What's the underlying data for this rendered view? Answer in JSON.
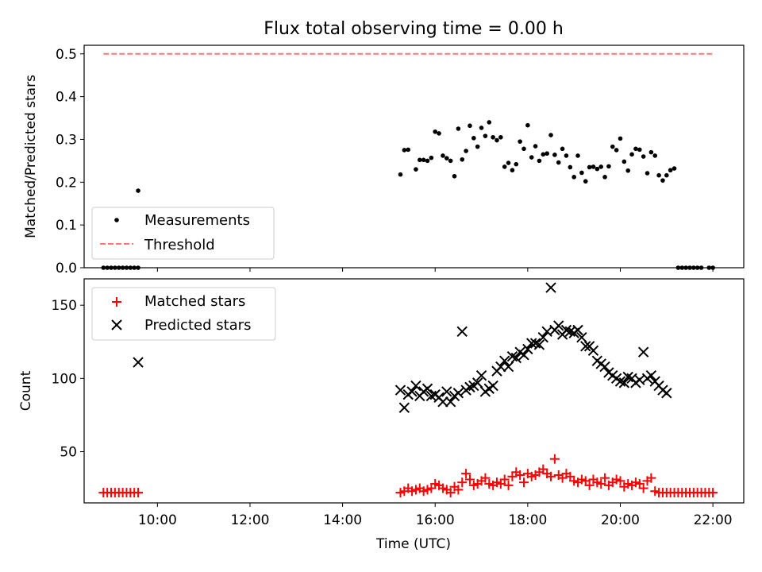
{
  "chart_data": [
    {
      "type": "scatter",
      "title": "Flux total observing time = 0.00 h",
      "xlabel": "",
      "ylabel": "Matched/Predicted stars",
      "xlim": [
        "08:25",
        "22:40"
      ],
      "ylim": [
        0,
        0.52
      ],
      "yticks": [
        0.0,
        0.1,
        0.2,
        0.3,
        0.4,
        0.5
      ],
      "ytick_labels": [
        "0.0",
        "0.1",
        "0.2",
        "0.3",
        "0.4",
        "0.5"
      ],
      "grid": false,
      "legend": "lower-left",
      "series": [
        {
          "name": "Measurements",
          "color": "#000000",
          "marker": "dot",
          "x": [
            "08:50",
            "08:55",
            "09:00",
            "09:05",
            "09:10",
            "09:15",
            "09:20",
            "09:25",
            "09:30",
            "09:35",
            "09:35",
            "15:15",
            "15:20",
            "15:25",
            "15:35",
            "15:40",
            "15:45",
            "15:50",
            "15:55",
            "16:00",
            "16:05",
            "16:10",
            "16:15",
            "16:20",
            "16:25",
            "16:30",
            "16:35",
            "16:40",
            "16:45",
            "16:50",
            "16:55",
            "17:00",
            "17:05",
            "17:10",
            "17:15",
            "17:20",
            "17:25",
            "17:30",
            "17:35",
            "17:40",
            "17:45",
            "17:50",
            "17:55",
            "18:00",
            "18:05",
            "18:10",
            "18:15",
            "18:20",
            "18:25",
            "18:30",
            "18:35",
            "18:40",
            "18:45",
            "18:50",
            "18:55",
            "19:00",
            "19:05",
            "19:10",
            "19:15",
            "19:20",
            "19:25",
            "19:30",
            "19:35",
            "19:40",
            "19:45",
            "19:50",
            "19:55",
            "20:00",
            "20:05",
            "20:10",
            "20:15",
            "20:20",
            "20:25",
            "20:30",
            "20:35",
            "20:40",
            "20:45",
            "20:50",
            "20:55",
            "21:00",
            "21:05",
            "21:10",
            "21:15",
            "21:20",
            "21:25",
            "21:30",
            "21:35",
            "21:40",
            "21:45",
            "21:55",
            "22:00"
          ],
          "y": [
            0,
            0,
            0,
            0,
            0,
            0,
            0,
            0,
            0,
            0,
            0.18,
            0.218,
            0.275,
            0.276,
            0.23,
            0.252,
            0.252,
            0.25,
            0.257,
            0.318,
            0.314,
            0.262,
            0.256,
            0.25,
            0.214,
            0.325,
            0.253,
            0.273,
            0.332,
            0.303,
            0.283,
            0.327,
            0.308,
            0.34,
            0.305,
            0.298,
            0.305,
            0.236,
            0.245,
            0.228,
            0.242,
            0.295,
            0.278,
            0.333,
            0.258,
            0.284,
            0.25,
            0.265,
            0.267,
            0.31,
            0.264,
            0.246,
            0.278,
            0.262,
            0.235,
            0.212,
            0.262,
            0.222,
            0.202,
            0.235,
            0.236,
            0.231,
            0.236,
            0.212,
            0.237,
            0.283,
            0.275,
            0.302,
            0.248,
            0.227,
            0.265,
            0.278,
            0.276,
            0.26,
            0.221,
            0.27,
            0.262,
            0.216,
            0.204,
            0.216,
            0.228,
            0.232,
            0,
            0,
            0,
            0,
            0,
            0,
            0,
            0,
            0
          ]
        },
        {
          "name": "Threshold",
          "color": "#ff7777",
          "style": "dashed",
          "x": [
            "08:50",
            "22:00"
          ],
          "y": [
            0.5,
            0.5
          ]
        }
      ]
    },
    {
      "type": "scatter",
      "title": "",
      "xlabel": "Time (UTC)",
      "ylabel": "Count",
      "xlim": [
        "08:25",
        "22:40"
      ],
      "ylim": [
        15,
        168
      ],
      "yticks": [
        50,
        100,
        150
      ],
      "ytick_labels": [
        "50",
        "100",
        "150"
      ],
      "xticks": [
        "10:00",
        "12:00",
        "14:00",
        "16:00",
        "18:00",
        "20:00",
        "22:00"
      ],
      "xtick_labels": [
        "10:00",
        "12:00",
        "14:00",
        "16:00",
        "18:00",
        "20:00",
        "22:00"
      ],
      "grid": false,
      "legend": "upper-left",
      "series": [
        {
          "name": "Matched stars",
          "color": "#ff0000",
          "marker": "plus",
          "x": [
            "08:50",
            "08:55",
            "09:00",
            "09:05",
            "09:10",
            "09:15",
            "09:20",
            "09:25",
            "09:30",
            "09:35",
            "15:15",
            "15:20",
            "15:25",
            "15:30",
            "15:35",
            "15:40",
            "15:45",
            "15:50",
            "15:55",
            "16:00",
            "16:05",
            "16:10",
            "16:15",
            "16:20",
            "16:25",
            "16:30",
            "16:35",
            "16:40",
            "16:45",
            "16:50",
            "16:55",
            "17:00",
            "17:05",
            "17:10",
            "17:15",
            "17:20",
            "17:25",
            "17:30",
            "17:35",
            "17:40",
            "17:45",
            "17:50",
            "17:55",
            "18:00",
            "18:05",
            "18:10",
            "18:15",
            "18:20",
            "18:25",
            "18:30",
            "18:35",
            "18:40",
            "18:45",
            "18:50",
            "18:55",
            "19:00",
            "19:05",
            "19:10",
            "19:15",
            "19:20",
            "19:25",
            "19:30",
            "19:35",
            "19:40",
            "19:45",
            "19:50",
            "19:55",
            "20:00",
            "20:05",
            "20:10",
            "20:15",
            "20:20",
            "20:25",
            "20:30",
            "20:35",
            "20:40",
            "20:45",
            "20:50",
            "20:55",
            "21:00",
            "21:05",
            "21:10",
            "21:15",
            "21:20",
            "21:25",
            "21:30",
            "21:35",
            "21:40",
            "21:45",
            "21:50",
            "21:55",
            "22:00"
          ],
          "y": [
            22,
            22,
            22,
            22,
            22,
            22,
            22,
            22,
            22,
            22,
            22,
            23,
            25,
            23,
            24,
            25,
            23,
            24,
            25,
            28,
            27,
            25,
            24,
            22,
            26,
            24,
            29,
            35,
            31,
            27,
            28,
            30,
            32,
            28,
            27,
            29,
            28,
            31,
            27,
            33,
            36,
            34,
            29,
            35,
            33,
            34,
            36,
            38,
            35,
            33,
            45,
            34,
            32,
            35,
            33,
            30,
            29,
            31,
            30,
            27,
            31,
            29,
            28,
            32,
            27,
            29,
            31,
            30,
            26,
            28,
            27,
            29,
            28,
            25,
            30,
            32,
            23,
            22,
            22,
            22,
            22,
            22,
            22,
            22,
            22,
            22,
            22,
            22,
            22,
            22,
            22,
            22
          ]
        },
        {
          "name": "Predicted stars",
          "color": "#000000",
          "marker": "x",
          "x": [
            "09:35",
            "15:15",
            "15:20",
            "15:25",
            "15:30",
            "15:35",
            "15:40",
            "15:45",
            "15:50",
            "15:55",
            "16:00",
            "16:05",
            "16:10",
            "16:15",
            "16:20",
            "16:25",
            "16:30",
            "16:35",
            "16:40",
            "16:45",
            "16:50",
            "16:55",
            "17:00",
            "17:05",
            "17:10",
            "17:15",
            "17:20",
            "17:25",
            "17:30",
            "17:35",
            "17:40",
            "17:45",
            "17:50",
            "17:55",
            "18:00",
            "18:05",
            "18:10",
            "18:15",
            "18:20",
            "18:25",
            "18:30",
            "18:35",
            "18:40",
            "18:45",
            "18:50",
            "18:55",
            "19:00",
            "19:05",
            "19:10",
            "19:15",
            "19:20",
            "19:25",
            "19:30",
            "19:35",
            "19:40",
            "19:45",
            "19:50",
            "19:55",
            "20:00",
            "20:05",
            "20:10",
            "20:15",
            "20:20",
            "20:25",
            "20:30",
            "20:35",
            "20:40",
            "20:45",
            "20:50",
            "20:55",
            "21:00"
          ],
          "y": [
            111,
            92,
            80,
            89,
            91,
            95,
            88,
            91,
            93,
            88,
            89,
            87,
            84,
            91,
            84,
            88,
            90,
            132,
            92,
            94,
            95,
            97,
            102,
            91,
            93,
            95,
            105,
            108,
            112,
            108,
            115,
            114,
            118,
            116,
            120,
            124,
            124,
            123,
            128,
            132,
            162,
            133,
            136,
            130,
            133,
            132,
            131,
            133,
            128,
            122,
            122,
            119,
            112,
            110,
            108,
            104,
            102,
            100,
            98,
            97,
            101,
            100,
            97,
            99,
            118,
            100,
            102,
            98,
            95,
            92,
            90
          ]
        }
      ]
    }
  ]
}
